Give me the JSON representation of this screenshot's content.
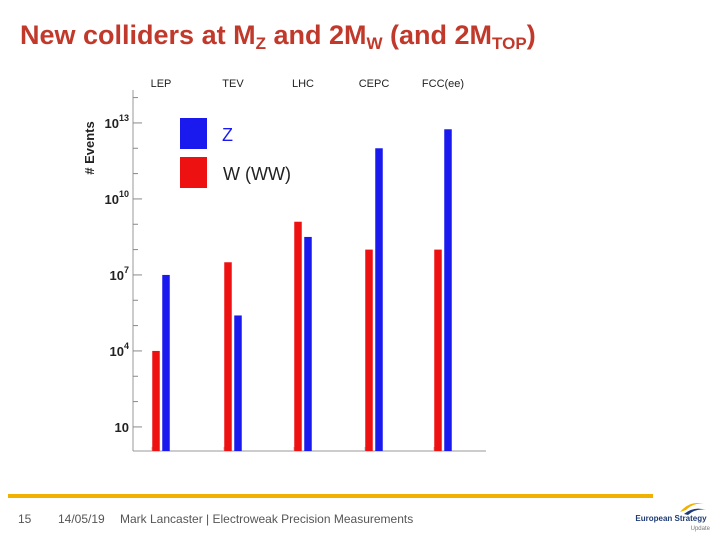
{
  "slide": {
    "title_parts": {
      "p1": "New colliders at M",
      "s1": "Z",
      "p2": " and 2M",
      "s2": "W",
      "p3": " (and 2M",
      "s3": "TOP",
      "p4": ")"
    },
    "title_color": "#c0392b",
    "footer": {
      "page": "15",
      "date": "14/05/19",
      "text": "Mark Lancaster | Electroweak Precision Measurements",
      "bar_color": "#f0b100"
    },
    "logo": {
      "name": "european-strategy-logo",
      "text": "European Strategy",
      "sub": "Update"
    }
  },
  "chart_data": {
    "type": "bar",
    "scale": "log10",
    "categories": [
      "LEP",
      "TEV",
      "LHC",
      "CEPC",
      "FCC(ee)"
    ],
    "ylabel": "# Events",
    "yticks": [
      {
        "base": "10",
        "exp": "13",
        "log": 13
      },
      {
        "base": "10",
        "exp": "10",
        "log": 10
      },
      {
        "base": "10",
        "exp": "7",
        "log": 7
      },
      {
        "base": "10",
        "exp": "4",
        "log": 4
      },
      {
        "base": "10",
        "exp": "",
        "log": 1
      }
    ],
    "ylim_log": [
      0.05,
      14.3
    ],
    "series": [
      {
        "name": "W (WW)",
        "color": "#ee1111",
        "log_values": [
          4.0,
          7.5,
          9.1,
          8.0,
          8.0
        ]
      },
      {
        "name": "Z",
        "color": "#1a1aee",
        "log_values": [
          7.0,
          5.4,
          8.5,
          12.0,
          12.75
        ]
      }
    ],
    "legend_position": "top-left"
  }
}
